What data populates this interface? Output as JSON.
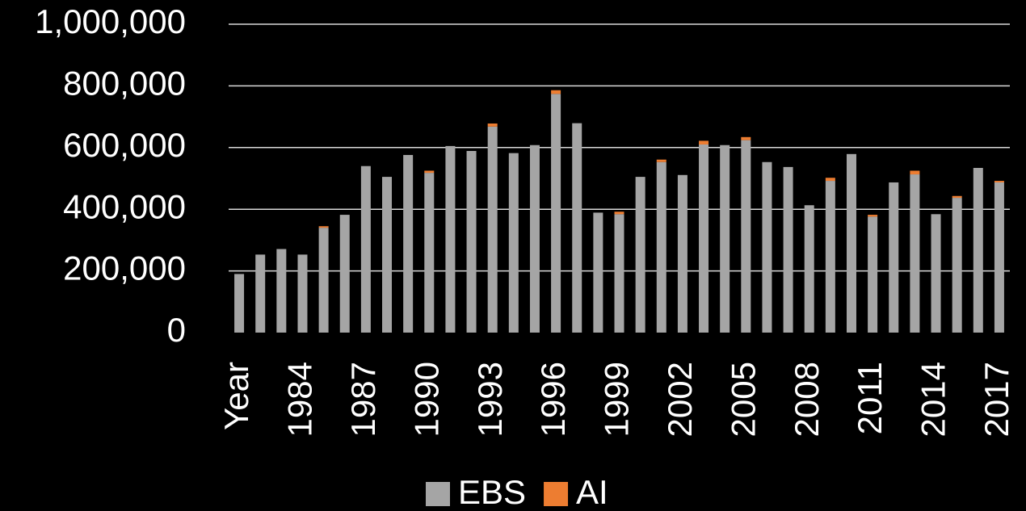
{
  "chart_data": {
    "type": "stacked_bar",
    "categories": [
      "Year",
      null,
      null,
      "1984",
      null,
      null,
      "1987",
      null,
      null,
      "1990",
      null,
      null,
      "1993",
      null,
      null,
      "1996",
      null,
      null,
      "1999",
      null,
      null,
      "2002",
      null,
      null,
      "2005",
      null,
      null,
      "2008",
      null,
      null,
      "2011",
      null,
      null,
      "2014",
      null,
      null,
      "2017"
    ],
    "series": [
      {
        "name": "EBS",
        "color": "#a5a5a5",
        "values": [
          190000,
          253000,
          271000,
          253000,
          340000,
          382000,
          540000,
          505000,
          576000,
          518000,
          605000,
          589000,
          668000,
          582000,
          608000,
          774000,
          679000,
          389000,
          384000,
          505000,
          553000,
          511000,
          610000,
          608000,
          624000,
          553000,
          537000,
          413000,
          492000,
          579000,
          376000,
          487000,
          513000,
          384000,
          437000,
          534000,
          487000
        ]
      },
      {
        "name": "AI",
        "color": "#ed7d31",
        "values": [
          0,
          0,
          0,
          0,
          5000,
          0,
          0,
          0,
          0,
          7000,
          0,
          0,
          10000,
          0,
          0,
          12000,
          0,
          0,
          8000,
          0,
          8000,
          0,
          12000,
          0,
          10000,
          0,
          0,
          0,
          10000,
          0,
          6000,
          0,
          12000,
          0,
          6000,
          0,
          5000
        ]
      }
    ],
    "ylim": [
      0,
      1000000
    ],
    "yticks": [
      0,
      {
        "value": 200000,
        "label": "200,000"
      },
      {
        "value": 400000,
        "label": "400,000"
      },
      {
        "value": 600000,
        "label": "600,000"
      },
      {
        "value": 800000,
        "label": "800,000"
      },
      {
        "value": 1000000,
        "label": "1,000,000"
      }
    ],
    "grid": true,
    "legend": "bottom"
  }
}
